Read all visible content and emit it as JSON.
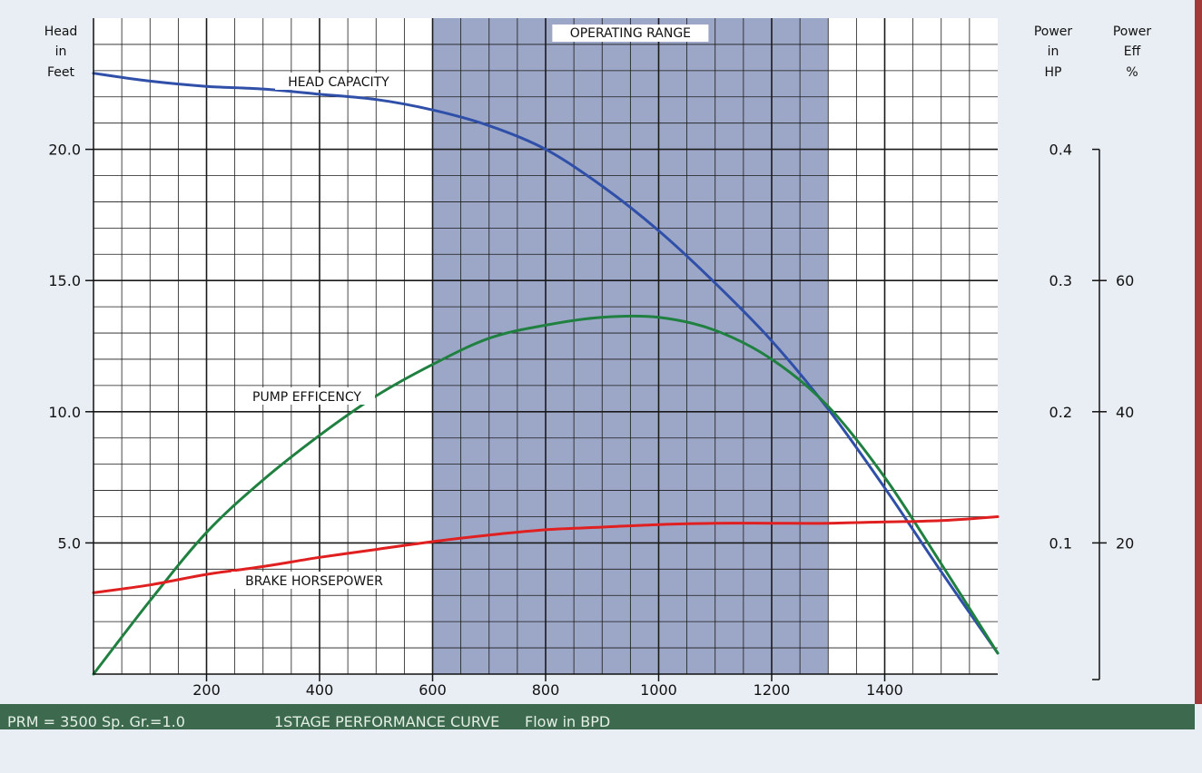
{
  "chart_data": {
    "type": "line",
    "x_range": [
      0,
      1600
    ],
    "x_ticks": [
      "200",
      "400",
      "600",
      "800",
      "1000",
      "1200",
      "1400"
    ],
    "x_tick_values": [
      200,
      400,
      600,
      800,
      1000,
      1200,
      1400
    ],
    "grid": true,
    "head_axis": {
      "title": [
        "Head",
        "in",
        "Feet"
      ],
      "range": [
        0,
        25
      ],
      "ticks": [
        "5.0",
        "10.0",
        "15.0",
        "20.0"
      ],
      "tick_values": [
        5,
        10,
        15,
        20
      ]
    },
    "power_axis": {
      "title": [
        "Power",
        "in",
        "HP"
      ],
      "range": [
        0,
        0.5
      ],
      "ticks": [
        "0.1",
        "0.2",
        "0.3",
        "0.4"
      ],
      "tick_values": [
        0.1,
        0.2,
        0.3,
        0.4
      ]
    },
    "eff_axis": {
      "title": [
        "Power",
        "Eff",
        "%"
      ],
      "range": [
        0,
        100
      ],
      "ticks": [
        "20",
        "40",
        "60"
      ],
      "tick_values": [
        20,
        40,
        60
      ]
    },
    "operating_range": {
      "label": "OPERATING RANGE",
      "x": [
        600,
        1300
      ]
    },
    "series": [
      {
        "name": "HEAD CAPACITY",
        "color": "#2f4fa8",
        "axis": "head",
        "x": [
          0,
          100,
          200,
          300,
          400,
          500,
          600,
          700,
          800,
          900,
          1000,
          1100,
          1200,
          1300,
          1400,
          1500,
          1600
        ],
        "y": [
          22.9,
          22.6,
          22.4,
          22.3,
          22.1,
          21.9,
          21.5,
          20.9,
          20.0,
          18.6,
          16.9,
          14.9,
          12.7,
          10.1,
          7.1,
          3.9,
          0.8
        ],
        "label_at": [
          540,
          22.5
        ]
      },
      {
        "name": "PUMP EFFICENCY",
        "color": "#1f8040",
        "axis": "head",
        "x": [
          0,
          100,
          200,
          300,
          400,
          500,
          600,
          700,
          800,
          900,
          1000,
          1100,
          1200,
          1300,
          1400,
          1500,
          1600
        ],
        "y": [
          0.0,
          2.8,
          5.4,
          7.4,
          9.1,
          10.6,
          11.8,
          12.8,
          13.3,
          13.6,
          13.6,
          13.1,
          12.0,
          10.2,
          7.5,
          4.2,
          0.8
        ],
        "label_at": [
          380,
          10.6
        ]
      },
      {
        "name": "BRAKE HORSEPOWER",
        "color": "#e02020",
        "axis": "head",
        "x": [
          0,
          100,
          200,
          300,
          400,
          500,
          600,
          700,
          800,
          900,
          1000,
          1100,
          1200,
          1300,
          1400,
          1500,
          1600
        ],
        "y": [
          3.1,
          3.4,
          3.8,
          4.1,
          4.45,
          4.75,
          5.05,
          5.3,
          5.5,
          5.6,
          5.7,
          5.75,
          5.75,
          5.75,
          5.8,
          5.85,
          6.0
        ],
        "label_at": [
          500,
          3.55
        ]
      }
    ]
  },
  "footer": {
    "rpm": "PRM = 3500 Sp. Gr.=1.0",
    "title": "1STAGE PERFORMANCE CURVE",
    "flow": "Flow in BPD"
  }
}
